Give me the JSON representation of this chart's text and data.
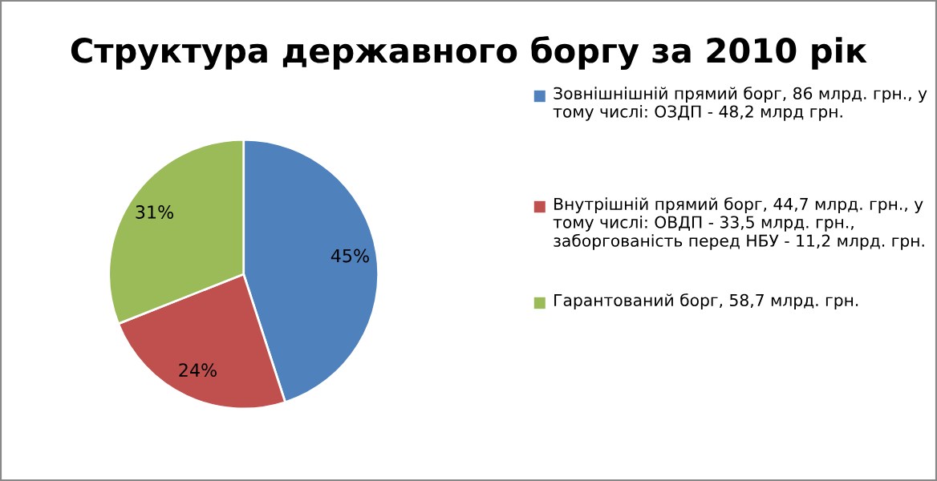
{
  "chart_data": {
    "type": "pie",
    "title": "Структура державного боргу за 2010 рік",
    "categories": [
      "Зовнішнішній прямий борг, 86 млрд. грн., у тому числі: ОЗДП - 48,2 млрд грн.",
      "Внутрішній прямий борг, 44,7 млрд. грн., у тому числі: ОВДП - 33,5 млрд. грн., заборгованість перед НБУ - 11,2 млрд. грн.",
      "Гарантований борг, 58,7 млрд. грн."
    ],
    "values": [
      45,
      24,
      31
    ],
    "value_labels": [
      "45%",
      "24%",
      "31%"
    ],
    "colors": [
      "#4f81bd",
      "#c0504d",
      "#9bbb59"
    ],
    "legend": "right"
  }
}
